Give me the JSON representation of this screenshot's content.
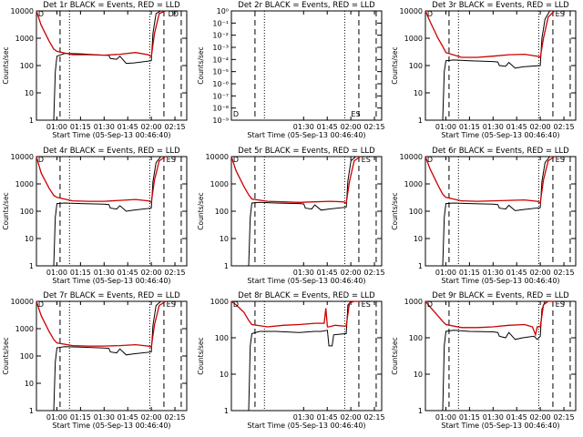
{
  "chart_data": [
    {
      "type": "line",
      "title": "Det 1r BLACK = Events, RED = LLD",
      "xlabel": "Start Time (05-Sep-13 00:46:40)",
      "ylabel": "Counts/sec",
      "x_ticks": [
        "01:00",
        "01:15",
        "01:30",
        "01:45",
        "02:00",
        "02:15"
      ],
      "y_ticks": [
        "1",
        "10",
        "100",
        "1000",
        "10000"
      ],
      "ylim": [
        1,
        10000
      ],
      "scale": "log",
      "markers": [
        "D",
        "D",
        "D"
      ],
      "series": [
        {
          "color": "#000000",
          "x": [
            "00:58",
            "00:59",
            "01:00",
            "01:05",
            "01:15",
            "01:30",
            "01:33",
            "01:34",
            "01:38",
            "01:40",
            "01:44",
            "01:49",
            "02:00",
            "02:01",
            "02:03",
            "02:06",
            "02:09"
          ],
          "y": [
            0,
            60,
            220,
            280,
            270,
            240,
            235,
            180,
            170,
            220,
            120,
            125,
            150,
            1500,
            8000,
            10000,
            10000
          ]
        },
        {
          "color": "#cc0000",
          "x": [
            "00:47",
            "00:50",
            "00:55",
            "00:58",
            "01:00",
            "01:10",
            "01:20",
            "01:30",
            "01:40",
            "01:50",
            "01:58",
            "02:00",
            "02:02",
            "02:05",
            "02:09"
          ],
          "y": [
            10000,
            3000,
            800,
            400,
            330,
            250,
            250,
            240,
            260,
            300,
            250,
            210,
            1500,
            8000,
            10000
          ]
        }
      ]
    },
    {
      "type": "line",
      "title": "Det 2r BLACK = Events, RED = LLD",
      "xlabel": "Start Time (05-Sep-13 00:46:40)",
      "ylabel": "Counts/sec",
      "x_ticks": [
        "01:30",
        "01:45",
        "02:00",
        "02:15"
      ],
      "y_ticks": [
        "10⁻⁹",
        "10⁻⁸",
        "10⁻⁷",
        "10⁻⁶",
        "10⁻⁵",
        "10⁻⁴",
        "10⁻³",
        "10⁻²",
        "10⁻¹",
        "10⁰"
      ],
      "ylim": [
        1e-10,
        1
      ],
      "scale": "log",
      "markers": [
        "D",
        "ES"
      ],
      "series": []
    },
    {
      "type": "line",
      "title": "Det 3r BLACK = Events, RED = LLD",
      "xlabel": "Start Time (05-Sep-13 00:46:40)",
      "ylabel": "Counts/sec",
      "x_ticks": [
        "01:00",
        "01:15",
        "01:30",
        "01:45",
        "02:00",
        "02:15"
      ],
      "y_ticks": [
        "1",
        "10",
        "100",
        "1000",
        "10000"
      ],
      "ylim": [
        1,
        10000
      ],
      "scale": "log",
      "markers": [
        "D",
        "ES"
      ],
      "series": [
        {
          "color": "#000000",
          "x": [
            "00:58",
            "00:59",
            "01:00",
            "01:05",
            "01:15",
            "01:30",
            "01:33",
            "01:34",
            "01:38",
            "01:40",
            "01:44",
            "01:49",
            "02:00",
            "02:01",
            "02:03",
            "02:06",
            "02:09"
          ],
          "y": [
            0,
            60,
            150,
            160,
            150,
            140,
            135,
            100,
            95,
            130,
            80,
            90,
            100,
            1000,
            5000,
            10000,
            10000
          ]
        },
        {
          "color": "#cc0000",
          "x": [
            "00:47",
            "00:50",
            "00:55",
            "00:58",
            "01:00",
            "01:10",
            "01:20",
            "01:30",
            "01:40",
            "01:50",
            "01:58",
            "02:00",
            "02:02",
            "02:05",
            "02:09"
          ],
          "y": [
            10000,
            4000,
            1000,
            500,
            300,
            200,
            200,
            220,
            250,
            260,
            220,
            200,
            1000,
            6000,
            10000
          ]
        }
      ]
    },
    {
      "type": "line",
      "title": "Det 4r BLACK = Events, RED = LLD",
      "xlabel": "Start Time (05-Sep-13 00:46:40)",
      "ylabel": "Counts/sec",
      "x_ticks": [
        "01:00",
        "01:15",
        "01:30",
        "01:45",
        "02:00",
        "02:15"
      ],
      "y_ticks": [
        "1",
        "10",
        "100",
        "1000",
        "10000"
      ],
      "ylim": [
        1,
        10000
      ],
      "scale": "log",
      "markers": [
        "D",
        "ES"
      ],
      "series": [
        {
          "color": "#000000",
          "x": [
            "00:58",
            "00:59",
            "01:00",
            "01:05",
            "01:15",
            "01:30",
            "01:33",
            "01:34",
            "01:38",
            "01:40",
            "01:44",
            "01:49",
            "02:00",
            "02:01",
            "02:03",
            "02:06",
            "02:09"
          ],
          "y": [
            0,
            60,
            190,
            200,
            190,
            180,
            175,
            130,
            120,
            160,
            100,
            110,
            130,
            1200,
            6000,
            10000,
            10000
          ]
        },
        {
          "color": "#cc0000",
          "x": [
            "00:47",
            "00:50",
            "00:55",
            "00:58",
            "01:00",
            "01:10",
            "01:20",
            "01:30",
            "01:40",
            "01:50",
            "01:58",
            "02:00",
            "02:02",
            "02:05",
            "02:09"
          ],
          "y": [
            10000,
            2500,
            700,
            380,
            320,
            240,
            230,
            230,
            250,
            270,
            240,
            210,
            1400,
            7000,
            10000
          ]
        }
      ]
    },
    {
      "type": "line",
      "title": "Det 5r BLACK = Events, RED = LLD",
      "xlabel": "Start Time (05-Sep-13 00:46:40)",
      "ylabel": "Counts/sec",
      "x_ticks": [
        "01:30",
        "01:45",
        "02:00",
        "02:15"
      ],
      "y_ticks": [
        "1",
        "10",
        "100",
        "1000",
        "10000"
      ],
      "ylim": [
        1,
        10000
      ],
      "scale": "log",
      "markers": [
        "D",
        "ES"
      ],
      "series": [
        {
          "color": "#000000",
          "x": [
            "00:58",
            "00:59",
            "01:00",
            "01:05",
            "01:15",
            "01:30",
            "01:33",
            "01:34",
            "01:38",
            "01:40",
            "01:44",
            "01:49",
            "02:00",
            "02:01",
            "02:03",
            "02:06",
            "02:09"
          ],
          "y": [
            0,
            60,
            200,
            210,
            200,
            190,
            185,
            130,
            120,
            170,
            110,
            120,
            140,
            1300,
            7000,
            10000,
            10000
          ]
        },
        {
          "color": "#cc0000",
          "x": [
            "00:47",
            "00:50",
            "00:55",
            "00:58",
            "01:00",
            "01:10",
            "01:20",
            "01:30",
            "01:40",
            "01:50",
            "01:58",
            "02:00",
            "02:02",
            "02:05",
            "02:09"
          ],
          "y": [
            10000,
            3000,
            800,
            400,
            280,
            230,
            220,
            210,
            220,
            230,
            220,
            200,
            1200,
            7000,
            10000
          ]
        }
      ]
    },
    {
      "type": "line",
      "title": "Det 6r BLACK = Events, RED = LLD",
      "xlabel": "Start Time (05-Sep-13 00:46:40)",
      "ylabel": "Counts/sec",
      "x_ticks": [
        "01:00",
        "01:15",
        "01:30",
        "01:45",
        "02:00",
        "02:15"
      ],
      "y_ticks": [
        "1",
        "10",
        "100",
        "1000",
        "10000"
      ],
      "ylim": [
        1,
        10000
      ],
      "scale": "log",
      "markers": [
        "D",
        "ES"
      ],
      "series": [
        {
          "color": "#000000",
          "x": [
            "00:58",
            "00:59",
            "01:00",
            "01:05",
            "01:15",
            "01:30",
            "01:33",
            "01:34",
            "01:38",
            "01:40",
            "01:44",
            "01:49",
            "02:00",
            "02:01",
            "02:03",
            "02:06",
            "02:09"
          ],
          "y": [
            0,
            60,
            190,
            200,
            190,
            180,
            175,
            130,
            120,
            165,
            105,
            115,
            135,
            1200,
            6000,
            10000,
            10000
          ]
        },
        {
          "color": "#cc0000",
          "x": [
            "00:47",
            "00:50",
            "00:55",
            "00:58",
            "01:00",
            "01:10",
            "01:20",
            "01:30",
            "01:40",
            "01:50",
            "01:58",
            "02:00",
            "02:02",
            "02:05",
            "02:09"
          ],
          "y": [
            10000,
            3500,
            900,
            420,
            320,
            240,
            230,
            240,
            250,
            260,
            230,
            200,
            1400,
            7000,
            10000
          ]
        }
      ]
    },
    {
      "type": "line",
      "title": "Det 7r BLACK = Events, RED = LLD",
      "xlabel": "Start Time (05-Sep-13 00:46:40)",
      "ylabel": "Counts/sec",
      "x_ticks": [
        "01:00",
        "01:15",
        "01:30",
        "01:45",
        "02:00",
        "02:15"
      ],
      "y_ticks": [
        "1",
        "10",
        "100",
        "1000",
        "10000"
      ],
      "ylim": [
        1,
        10000
      ],
      "scale": "log",
      "markers": [
        "D",
        "ES"
      ],
      "series": [
        {
          "color": "#000000",
          "x": [
            "00:58",
            "00:59",
            "01:00",
            "01:05",
            "01:15",
            "01:30",
            "01:33",
            "01:34",
            "01:38",
            "01:40",
            "01:44",
            "01:49",
            "02:00",
            "02:01",
            "02:03",
            "02:06",
            "02:09"
          ],
          "y": [
            0,
            60,
            200,
            220,
            210,
            195,
            190,
            140,
            130,
            180,
            110,
            120,
            140,
            1300,
            7000,
            10000,
            10000
          ]
        },
        {
          "color": "#cc0000",
          "x": [
            "00:47",
            "00:50",
            "00:55",
            "00:58",
            "01:00",
            "01:10",
            "01:20",
            "01:30",
            "01:40",
            "01:50",
            "01:58",
            "02:00",
            "02:02",
            "02:05",
            "02:09"
          ],
          "y": [
            10000,
            3000,
            800,
            400,
            300,
            240,
            230,
            230,
            240,
            260,
            230,
            210,
            1400,
            7000,
            10000
          ]
        }
      ]
    },
    {
      "type": "line",
      "title": "Det 8r BLACK = Events, RED = LLD",
      "xlabel": "Start Time (05-Sep-13 00:46:40)",
      "ylabel": "Counts/sec",
      "x_ticks": [
        "01:30",
        "01:45",
        "02:00",
        "02:15"
      ],
      "y_ticks": [
        "1",
        "10",
        "100",
        "1000"
      ],
      "ylim": [
        1,
        1000
      ],
      "scale": "log",
      "markers": [
        "D",
        "ES"
      ],
      "series": [
        {
          "color": "#000000",
          "x": [
            "00:58",
            "00:59",
            "01:00",
            "01:05",
            "01:15",
            "01:30",
            "01:40",
            "01:44",
            "01:48",
            "01:49",
            "01:51",
            "01:52",
            "02:00",
            "02:01",
            "02:03",
            "02:06",
            "02:09"
          ],
          "y": [
            0,
            60,
            130,
            150,
            150,
            140,
            150,
            150,
            160,
            60,
            60,
            120,
            130,
            800,
            1000,
            1000,
            1000
          ]
        },
        {
          "color": "#cc0000",
          "x": [
            "00:47",
            "00:50",
            "00:55",
            "00:58",
            "01:00",
            "01:10",
            "01:20",
            "01:30",
            "01:40",
            "01:46",
            "01:47",
            "01:48",
            "01:49",
            "01:53",
            "01:58",
            "02:00",
            "02:02",
            "02:05",
            "02:09"
          ],
          "y": [
            1000,
            800,
            500,
            300,
            230,
            200,
            220,
            230,
            250,
            250,
            650,
            200,
            200,
            220,
            210,
            210,
            900,
            1000,
            1000
          ]
        }
      ]
    },
    {
      "type": "line",
      "title": "Det 9r BLACK = Events, RED = LLD",
      "xlabel": "Start Time (05-Sep-13 00:46:40)",
      "ylabel": "Counts/sec",
      "x_ticks": [
        "01:00",
        "01:15",
        "01:30",
        "01:45",
        "02:00",
        "02:15"
      ],
      "y_ticks": [
        "1",
        "10",
        "100",
        "1000"
      ],
      "ylim": [
        1,
        1000
      ],
      "scale": "log",
      "markers": [
        "D",
        "ES"
      ],
      "series": [
        {
          "color": "#000000",
          "x": [
            "00:58",
            "00:59",
            "01:00",
            "01:05",
            "01:15",
            "01:30",
            "01:33",
            "01:34",
            "01:38",
            "01:40",
            "01:44",
            "01:49",
            "01:56",
            "01:58",
            "02:00",
            "02:01",
            "02:03",
            "02:06",
            "02:09"
          ],
          "y": [
            0,
            60,
            150,
            160,
            150,
            145,
            140,
            110,
            100,
            140,
            90,
            100,
            110,
            90,
            110,
            600,
            1000,
            1000,
            1000
          ]
        },
        {
          "color": "#cc0000",
          "x": [
            "00:47",
            "00:50",
            "00:55",
            "00:58",
            "01:00",
            "01:10",
            "01:20",
            "01:30",
            "01:40",
            "01:50",
            "01:55",
            "01:57",
            "01:58",
            "02:00",
            "02:02",
            "02:05",
            "02:09"
          ],
          "y": [
            1000,
            700,
            400,
            280,
            230,
            190,
            190,
            200,
            220,
            230,
            200,
            120,
            200,
            200,
            800,
            1000,
            1000
          ]
        }
      ]
    }
  ]
}
